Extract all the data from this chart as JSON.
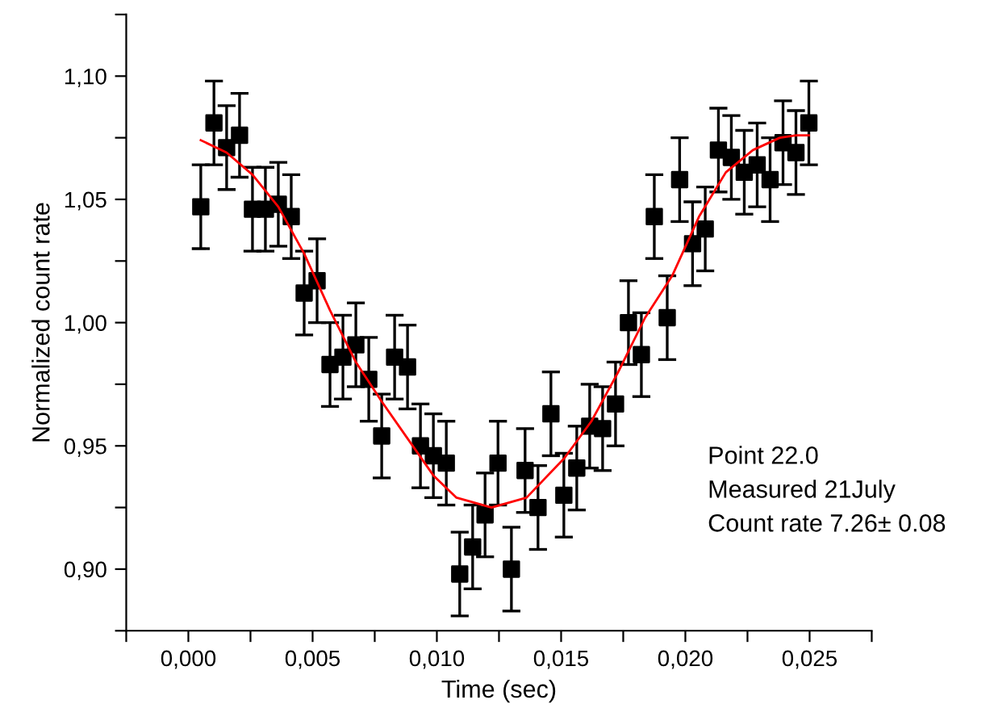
{
  "chart_data": {
    "type": "scatter",
    "xlabel": "Time (sec)",
    "ylabel": "Normalized count rate",
    "xlim": [
      -0.0025,
      0.0275
    ],
    "ylim": [
      0.875,
      1.125
    ],
    "xticks": [
      {
        "value": -0.0025,
        "label": null
      },
      {
        "value": 0.0,
        "label": "0,000"
      },
      {
        "value": 0.0025,
        "label": null
      },
      {
        "value": 0.005,
        "label": "0,005"
      },
      {
        "value": 0.0075,
        "label": null
      },
      {
        "value": 0.01,
        "label": "0,010"
      },
      {
        "value": 0.0125,
        "label": null
      },
      {
        "value": 0.015,
        "label": "0,015"
      },
      {
        "value": 0.0175,
        "label": null
      },
      {
        "value": 0.02,
        "label": "0,020"
      },
      {
        "value": 0.0225,
        "label": null
      },
      {
        "value": 0.025,
        "label": "0,025"
      },
      {
        "value": 0.0275,
        "label": null
      }
    ],
    "yticks": [
      {
        "value": 0.875,
        "label": null
      },
      {
        "value": 0.9,
        "label": "0,90"
      },
      {
        "value": 0.925,
        "label": null
      },
      {
        "value": 0.95,
        "label": "0,95"
      },
      {
        "value": 0.975,
        "label": null
      },
      {
        "value": 1.0,
        "label": "1,00"
      },
      {
        "value": 1.025,
        "label": null
      },
      {
        "value": 1.05,
        "label": "1,05"
      },
      {
        "value": 1.075,
        "label": null
      },
      {
        "value": 1.1,
        "label": "1,10"
      },
      {
        "value": 1.125,
        "label": null
      }
    ],
    "grid": false,
    "legend": false,
    "annotations": [
      "Point 22.0",
      "Measured 21July",
      "Count rate 7.26± 0.08"
    ],
    "series": [
      {
        "color": "#000000",
        "marker": "square",
        "x": [
          0.0005,
          0.00103,
          0.00154,
          0.00206,
          0.00258,
          0.0031,
          0.00362,
          0.00414,
          0.00466,
          0.00518,
          0.0057,
          0.00622,
          0.00674,
          0.00726,
          0.00778,
          0.0083,
          0.00882,
          0.00934,
          0.00986,
          0.01038,
          0.01092,
          0.01144,
          0.01194,
          0.01246,
          0.013,
          0.01355,
          0.01407,
          0.01459,
          0.01511,
          0.01563,
          0.01615,
          0.01667,
          0.01719,
          0.01771,
          0.01823,
          0.01875,
          0.01927,
          0.01977,
          0.02029,
          0.0208,
          0.02133,
          0.02185,
          0.02237,
          0.02289,
          0.02341,
          0.02393,
          0.02445,
          0.02497
        ],
        "values": [
          1.047,
          1.081,
          1.071,
          1.076,
          1.046,
          1.046,
          1.048,
          1.043,
          1.012,
          1.017,
          0.983,
          0.986,
          0.991,
          0.977,
          0.954,
          0.986,
          0.982,
          0.95,
          0.946,
          0.943,
          0.898,
          0.909,
          0.922,
          0.943,
          0.9,
          0.94,
          0.925,
          0.963,
          0.93,
          0.941,
          0.958,
          0.957,
          0.967,
          1.0,
          0.987,
          1.043,
          1.002,
          1.058,
          1.032,
          1.038,
          1.07,
          1.067,
          1.061,
          1.064,
          1.058,
          1.073,
          1.069,
          1.081
        ],
        "errors": [
          0.017,
          0.017,
          0.017,
          0.017,
          0.017,
          0.017,
          0.017,
          0.017,
          0.017,
          0.017,
          0.017,
          0.017,
          0.017,
          0.017,
          0.017,
          0.017,
          0.017,
          0.017,
          0.017,
          0.017,
          0.017,
          0.017,
          0.017,
          0.017,
          0.017,
          0.017,
          0.017,
          0.017,
          0.017,
          0.017,
          0.017,
          0.017,
          0.017,
          0.017,
          0.017,
          0.017,
          0.017,
          0.017,
          0.017,
          0.017,
          0.017,
          0.017,
          0.017,
          0.017,
          0.017,
          0.017,
          0.017,
          0.017
        ]
      },
      {
        "type": "line",
        "color": "#ff0000",
        "marker": "none",
        "x": [
          0.0005,
          0.00154,
          0.00258,
          0.00362,
          0.00466,
          0.0057,
          0.00674,
          0.00778,
          0.00882,
          0.00986,
          0.01079,
          0.0122,
          0.01361,
          0.01513,
          0.01622,
          0.0173,
          0.01838,
          0.01947,
          0.02055,
          0.02163,
          0.02272,
          0.0238,
          0.02445,
          0.02497
        ],
        "values": [
          1.074,
          1.069,
          1.06,
          1.047,
          1.028,
          1.005,
          0.984,
          0.968,
          0.953,
          0.938,
          0.929,
          0.925,
          0.929,
          0.945,
          0.96,
          0.98,
          1.002,
          1.019,
          1.043,
          1.061,
          1.07,
          1.075,
          1.076,
          1.076
        ]
      }
    ]
  }
}
